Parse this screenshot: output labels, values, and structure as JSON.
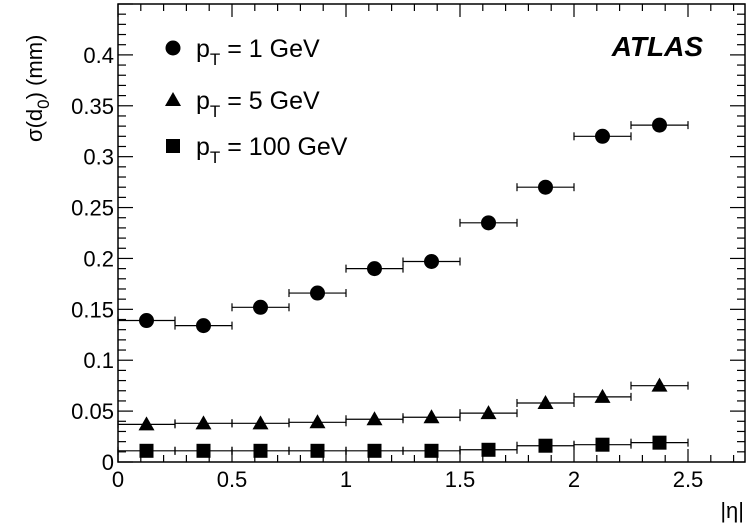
{
  "chart_data": {
    "type": "scatter",
    "experiment_label": "ATLAS",
    "xlabel": "|η|",
    "ylabel": {
      "main": "σ(d",
      "sub": "0",
      "tail": ") (mm)"
    },
    "xlim": [
      0,
      2.75
    ],
    "ylim": [
      0,
      0.45
    ],
    "x_ticks": [
      "0",
      "0.5",
      "1",
      "1.5",
      "2",
      "2.5"
    ],
    "x_tick_values": [
      0,
      0.5,
      1,
      1.5,
      2,
      2.5
    ],
    "y_ticks": [
      "0",
      "0.05",
      "0.1",
      "0.15",
      "0.2",
      "0.25",
      "0.3",
      "0.35",
      "0.4"
    ],
    "y_tick_values": [
      0,
      0.05,
      0.1,
      0.15,
      0.2,
      0.25,
      0.3,
      0.35,
      0.4
    ],
    "x": [
      0.125,
      0.375,
      0.625,
      0.875,
      1.125,
      1.375,
      1.625,
      1.875,
      2.125,
      2.375
    ],
    "x_err": 0.125,
    "legend_position": "top-left",
    "grid": false,
    "series": [
      {
        "name_main": "p",
        "name_sub": "T",
        "name_tail": " = 1 GeV",
        "marker": "circle",
        "values": [
          0.139,
          0.134,
          0.152,
          0.166,
          0.19,
          0.197,
          0.235,
          0.27,
          0.32,
          0.331
        ]
      },
      {
        "name_main": "p",
        "name_sub": "T",
        "name_tail": " = 5 GeV",
        "marker": "triangle",
        "values": [
          0.037,
          0.038,
          0.038,
          0.039,
          0.042,
          0.044,
          0.048,
          0.058,
          0.064,
          0.075
        ]
      },
      {
        "name_main": "p",
        "name_sub": "T",
        "name_tail": " = 100 GeV",
        "marker": "square",
        "values": [
          0.011,
          0.011,
          0.011,
          0.011,
          0.011,
          0.011,
          0.012,
          0.016,
          0.017,
          0.019
        ]
      }
    ]
  }
}
